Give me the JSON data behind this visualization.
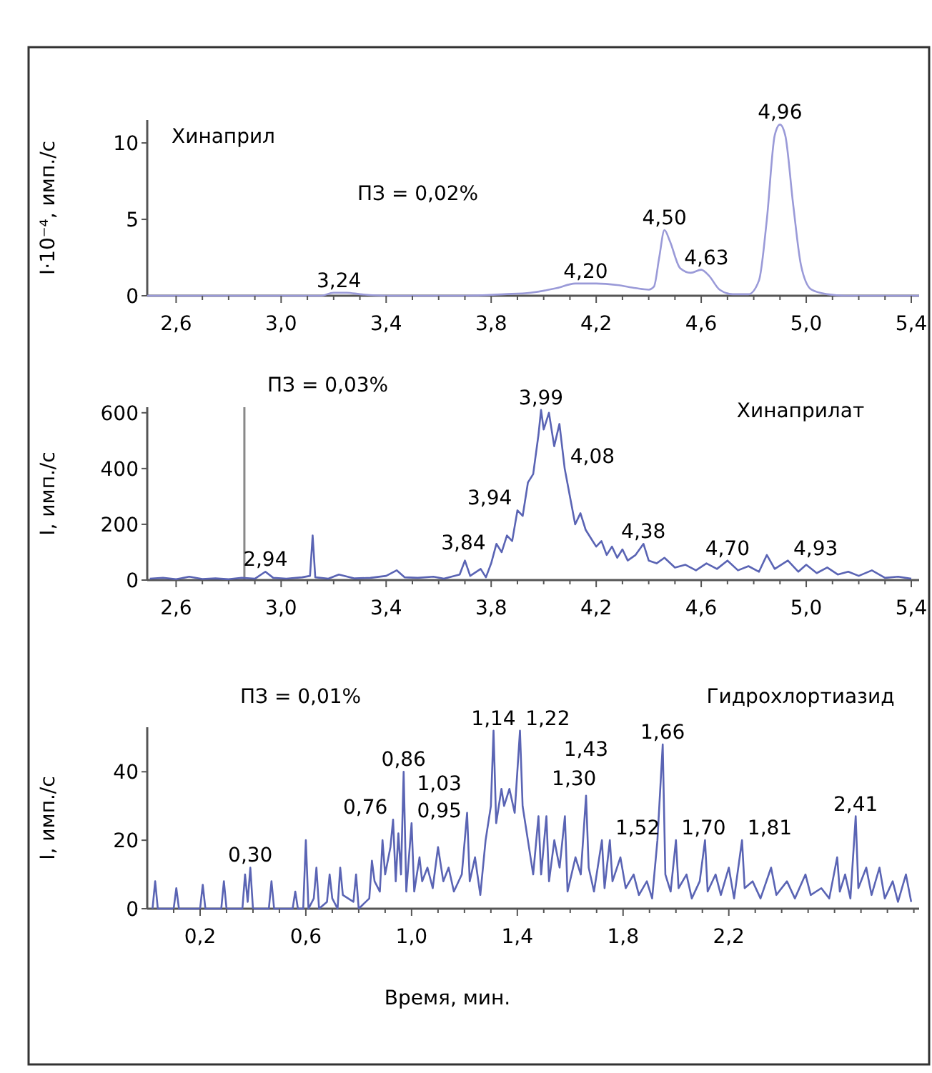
{
  "chart_data": [
    {
      "type": "line",
      "title": "Хинаприл",
      "ylabel": "I·10⁻⁴, имп./с",
      "xlim": [
        2.49,
        5.43
      ],
      "ylim": [
        0,
        11.5
      ],
      "yticks": [
        0,
        5,
        10
      ],
      "xticks": [
        {
          "value": 2.6,
          "label": "2,6"
        },
        {
          "value": 2.7,
          "label": null
        },
        {
          "value": 2.8,
          "label": null
        },
        {
          "value": 2.9,
          "label": null
        },
        {
          "value": 3.0,
          "label": "3,0"
        },
        {
          "value": 3.1,
          "label": null
        },
        {
          "value": 3.2,
          "label": null
        },
        {
          "value": 3.3,
          "label": null
        },
        {
          "value": 3.4,
          "label": "3,4"
        },
        {
          "value": 3.5,
          "label": null
        },
        {
          "value": 3.6,
          "label": null
        },
        {
          "value": 3.7,
          "label": null
        },
        {
          "value": 3.8,
          "label": "3,8"
        },
        {
          "value": 3.9,
          "label": null
        },
        {
          "value": 4.0,
          "label": null
        },
        {
          "value": 4.1,
          "label": null
        },
        {
          "value": 4.2,
          "label": "4,2"
        },
        {
          "value": 4.3,
          "label": null
        },
        {
          "value": 4.4,
          "label": null
        },
        {
          "value": 4.5,
          "label": null
        },
        {
          "value": 4.6,
          "label": "4,6"
        },
        {
          "value": 4.7,
          "label": null
        },
        {
          "value": 4.8,
          "label": null
        },
        {
          "value": 4.9,
          "label": null
        },
        {
          "value": 5.0,
          "label": "5,0"
        },
        {
          "value": 5.1,
          "label": null
        },
        {
          "value": 5.2,
          "label": null
        },
        {
          "value": 5.3,
          "label": null
        },
        {
          "value": 5.4,
          "label": "5,4"
        }
      ],
      "series": [
        {
          "color": "#9a9ad8",
          "x": [
            2.49,
            3.15,
            3.2,
            3.25,
            3.3,
            3.4,
            3.7,
            3.85,
            3.95,
            4.05,
            4.12,
            4.2,
            4.28,
            4.35,
            4.4,
            4.42,
            4.44,
            4.46,
            4.48,
            4.52,
            4.56,
            4.6,
            4.63,
            4.67,
            4.72,
            4.78,
            4.82,
            4.85,
            4.88,
            4.9,
            4.92,
            4.95,
            4.98,
            5.02,
            5.08,
            5.15,
            5.43
          ],
          "values": [
            0,
            0,
            0.2,
            0.2,
            0.1,
            0,
            0,
            0.1,
            0.2,
            0.5,
            0.8,
            0.8,
            0.7,
            0.5,
            0.4,
            0.6,
            2.5,
            4.3,
            3.6,
            1.8,
            1.5,
            1.7,
            1.3,
            0.4,
            0.1,
            0.1,
            1,
            5,
            10.5,
            11.2,
            10.5,
            6,
            2,
            0.4,
            0.1,
            0,
            0
          ]
        }
      ],
      "annotations": [
        "ПЗ = 0,02%",
        {
          "text": "3,24",
          "x": 3.22,
          "y": 0.2
        },
        {
          "text": "4,20",
          "x": 4.16,
          "y": 0.8
        },
        {
          "text": "4,50",
          "x": 4.46,
          "y": 4.3
        },
        {
          "text": "4,63",
          "x": 4.62,
          "y": 1.7
        },
        {
          "text": "4,96",
          "x": 4.9,
          "y": 11.2
        }
      ]
    },
    {
      "type": "line",
      "title": "Хинаприлат",
      "ylabel": "I, имп./с",
      "xlim": [
        2.49,
        5.43
      ],
      "ylim": [
        0,
        620
      ],
      "yticks": [
        0,
        200,
        400,
        600
      ],
      "xticks": [
        {
          "value": 2.6,
          "label": "2,6"
        },
        {
          "value": 2.7,
          "label": null
        },
        {
          "value": 2.8,
          "label": null
        },
        {
          "value": 2.9,
          "label": null
        },
        {
          "value": 3.0,
          "label": "3,0"
        },
        {
          "value": 3.1,
          "label": null
        },
        {
          "value": 3.2,
          "label": null
        },
        {
          "value": 3.3,
          "label": null
        },
        {
          "value": 3.4,
          "label": "3,4"
        },
        {
          "value": 3.5,
          "label": null
        },
        {
          "value": 3.6,
          "label": null
        },
        {
          "value": 3.7,
          "label": null
        },
        {
          "value": 3.8,
          "label": "3,8"
        },
        {
          "value": 3.9,
          "label": null
        },
        {
          "value": 4.0,
          "label": null
        },
        {
          "value": 4.1,
          "label": null
        },
        {
          "value": 4.2,
          "label": "4,2"
        },
        {
          "value": 4.3,
          "label": null
        },
        {
          "value": 4.4,
          "label": null
        },
        {
          "value": 4.5,
          "label": null
        },
        {
          "value": 4.6,
          "label": "4,6"
        },
        {
          "value": 4.7,
          "label": null
        },
        {
          "value": 4.8,
          "label": null
        },
        {
          "value": 4.9,
          "label": null
        },
        {
          "value": 5.0,
          "label": "5,0"
        },
        {
          "value": 5.1,
          "label": null
        },
        {
          "value": 5.2,
          "label": null
        },
        {
          "value": 5.3,
          "label": null
        },
        {
          "value": 5.4,
          "label": "5,4"
        }
      ],
      "ref_lines": [
        {
          "axis": "x",
          "value": 2.86,
          "color": "#888888"
        }
      ],
      "series": [
        {
          "color": "#5a64b4",
          "x": [
            2.5,
            2.55,
            2.6,
            2.65,
            2.7,
            2.75,
            2.8,
            2.85,
            2.9,
            2.94,
            2.97,
            3.02,
            3.08,
            3.11,
            3.12,
            3.13,
            3.18,
            3.22,
            3.28,
            3.34,
            3.4,
            3.44,
            3.47,
            3.52,
            3.58,
            3.62,
            3.68,
            3.7,
            3.72,
            3.76,
            3.78,
            3.8,
            3.82,
            3.84,
            3.86,
            3.88,
            3.9,
            3.92,
            3.94,
            3.96,
            3.98,
            3.99,
            4.0,
            4.02,
            4.04,
            4.06,
            4.08,
            4.1,
            4.12,
            4.14,
            4.16,
            4.18,
            4.2,
            4.22,
            4.24,
            4.26,
            4.28,
            4.3,
            4.32,
            4.35,
            4.38,
            4.4,
            4.43,
            4.46,
            4.5,
            4.54,
            4.58,
            4.62,
            4.66,
            4.7,
            4.74,
            4.78,
            4.82,
            4.85,
            4.88,
            4.93,
            4.97,
            5.0,
            5.04,
            5.08,
            5.12,
            5.16,
            5.2,
            5.25,
            5.3,
            5.35,
            5.4
          ],
          "values": [
            5,
            8,
            3,
            12,
            4,
            6,
            3,
            8,
            5,
            30,
            8,
            5,
            10,
            15,
            160,
            10,
            5,
            20,
            6,
            8,
            15,
            35,
            10,
            8,
            12,
            5,
            20,
            70,
            15,
            40,
            10,
            60,
            130,
            100,
            160,
            140,
            250,
            230,
            350,
            380,
            520,
            610,
            540,
            600,
            480,
            560,
            400,
            300,
            200,
            240,
            180,
            150,
            120,
            140,
            90,
            120,
            80,
            110,
            70,
            90,
            130,
            70,
            60,
            80,
            45,
            55,
            35,
            60,
            40,
            70,
            35,
            50,
            30,
            90,
            40,
            70,
            30,
            55,
            25,
            45,
            20,
            30,
            15,
            35,
            8,
            12,
            5
          ]
        }
      ],
      "annotations": [
        "ПЗ = 0,03%",
        {
          "text": "2,94",
          "x": 2.94,
          "y": 30
        },
        {
          "text": "3,84",
          "x": 3.8,
          "y": 60
        },
        {
          "text": "3,94",
          "x": 3.9,
          "y": 250
        },
        {
          "text": "3,99",
          "x": 3.99,
          "y": 610
        },
        {
          "text": "4,08",
          "x": 4.08,
          "y": 400
        },
        {
          "text": "4,38",
          "x": 4.38,
          "y": 130
        },
        {
          "text": "4,70",
          "x": 4.7,
          "y": 70
        },
        {
          "text": "4,93",
          "x": 4.93,
          "y": 70
        }
      ]
    },
    {
      "type": "line",
      "title": "Гидрохлортиазид",
      "ylabel": "I, имп./с",
      "xlabel": "Время, мин.",
      "xlim": [
        0,
        2.92
      ],
      "ylim": [
        0,
        53
      ],
      "yticks": [
        0,
        20,
        40
      ],
      "xticks": [
        {
          "value": 0.1,
          "label": null
        },
        {
          "value": 0.2,
          "label": "0,2"
        },
        {
          "value": 0.3,
          "label": null
        },
        {
          "value": 0.4,
          "label": null
        },
        {
          "value": 0.5,
          "label": null
        },
        {
          "value": 0.6,
          "label": "0,6"
        },
        {
          "value": 0.7,
          "label": null
        },
        {
          "value": 0.8,
          "label": null
        },
        {
          "value": 0.9,
          "label": null
        },
        {
          "value": 1.0,
          "label": "1,0"
        },
        {
          "value": 1.1,
          "label": null
        },
        {
          "value": 1.2,
          "label": null
        },
        {
          "value": 1.3,
          "label": null
        },
        {
          "value": 1.4,
          "label": "1,4"
        },
        {
          "value": 1.5,
          "label": null
        },
        {
          "value": 1.6,
          "label": null
        },
        {
          "value": 1.7,
          "label": null
        },
        {
          "value": 1.8,
          "label": "1,8"
        },
        {
          "value": 1.9,
          "label": null
        },
        {
          "value": 2.0,
          "label": null
        },
        {
          "value": 2.1,
          "label": null
        },
        {
          "value": 2.2,
          "label": "2,2"
        },
        {
          "value": 2.3,
          "label": null
        },
        {
          "value": 2.4,
          "label": null
        },
        {
          "value": 2.5,
          "label": null
        },
        {
          "value": 2.6,
          "label": null
        },
        {
          "value": 2.7,
          "label": null
        },
        {
          "value": 2.8,
          "label": null
        },
        {
          "value": 2.9,
          "label": null
        }
      ],
      "series": [
        {
          "color": "#5a64b4",
          "x": [
            0.02,
            0.03,
            0.04,
            0.1,
            0.11,
            0.12,
            0.2,
            0.21,
            0.22,
            0.28,
            0.29,
            0.3,
            0.36,
            0.37,
            0.38,
            0.39,
            0.4,
            0.46,
            0.47,
            0.48,
            0.55,
            0.56,
            0.57,
            0.59,
            0.6,
            0.61,
            0.63,
            0.64,
            0.65,
            0.68,
            0.69,
            0.7,
            0.72,
            0.73,
            0.74,
            0.78,
            0.79,
            0.8,
            0.84,
            0.85,
            0.86,
            0.88,
            0.89,
            0.9,
            0.92,
            0.93,
            0.94,
            0.95,
            0.96,
            0.97,
            0.98,
            1.0,
            1.01,
            1.03,
            1.04,
            1.06,
            1.08,
            1.1,
            1.12,
            1.14,
            1.16,
            1.19,
            1.21,
            1.22,
            1.24,
            1.26,
            1.28,
            1.3,
            1.31,
            1.32,
            1.34,
            1.35,
            1.37,
            1.39,
            1.41,
            1.42,
            1.44,
            1.46,
            1.48,
            1.49,
            1.51,
            1.52,
            1.54,
            1.56,
            1.58,
            1.59,
            1.62,
            1.64,
            1.66,
            1.67,
            1.69,
            1.72,
            1.73,
            1.75,
            1.76,
            1.79,
            1.81,
            1.84,
            1.86,
            1.89,
            1.91,
            1.93,
            1.95,
            1.96,
            1.98,
            2.0,
            2.01,
            2.04,
            2.06,
            2.09,
            2.11,
            2.12,
            2.15,
            2.17,
            2.2,
            2.22,
            2.25,
            2.26,
            2.29,
            2.32,
            2.36,
            2.38,
            2.42,
            2.45,
            2.49,
            2.51,
            2.55,
            2.58,
            2.61,
            2.62,
            2.64,
            2.66,
            2.68,
            2.69,
            2.72,
            2.74,
            2.77,
            2.79,
            2.82,
            2.84,
            2.87,
            2.89
          ],
          "values": [
            0,
            8,
            0,
            0,
            6,
            0,
            0,
            7,
            0,
            0,
            8,
            0,
            0,
            10,
            2,
            12,
            0,
            0,
            8,
            0,
            0,
            5,
            0,
            0,
            20,
            0,
            3,
            12,
            0,
            2,
            10,
            3,
            0,
            12,
            4,
            2,
            10,
            0,
            3,
            14,
            8,
            5,
            20,
            10,
            18,
            26,
            8,
            22,
            10,
            40,
            5,
            25,
            5,
            15,
            8,
            12,
            6,
            18,
            8,
            12,
            5,
            10,
            28,
            8,
            15,
            4,
            20,
            30,
            52,
            25,
            35,
            30,
            35,
            28,
            52,
            30,
            20,
            10,
            27,
            10,
            27,
            8,
            20,
            12,
            27,
            5,
            15,
            10,
            33,
            12,
            5,
            20,
            6,
            20,
            8,
            15,
            6,
            10,
            4,
            8,
            3,
            20,
            48,
            10,
            5,
            20,
            6,
            10,
            3,
            8,
            20,
            5,
            10,
            4,
            12,
            3,
            20,
            6,
            8,
            3,
            12,
            4,
            8,
            3,
            10,
            4,
            6,
            3,
            15,
            5,
            10,
            3,
            27,
            6,
            12,
            4,
            12,
            3,
            8,
            2,
            10,
            2
          ]
        }
      ],
      "annotations": [
        "ПЗ = 0,01%",
        {
          "text": "0,30",
          "x": 0.39,
          "y": 12
        },
        {
          "text": "0,76",
          "x": 0.93,
          "y": 26
        },
        {
          "text": "0,86",
          "x": 0.97,
          "y": 40
        },
        {
          "text": "0,95",
          "x": 1.0,
          "y": 25
        },
        {
          "text": "1,03",
          "x": 1.21,
          "y": 28
        },
        {
          "text": "1,14",
          "x": 1.31,
          "y": 52
        },
        {
          "text": "1,22",
          "x": 1.41,
          "y": 52
        },
        {
          "text": "1,30",
          "x": 1.51,
          "y": 27
        },
        {
          "text": "1,43",
          "x": 1.66,
          "y": 33
        },
        {
          "text": "1,52",
          "x": 1.75,
          "y": 20
        },
        {
          "text": "1,66",
          "x": 1.95,
          "y": 48
        },
        {
          "text": "1,70",
          "x": 2.0,
          "y": 20
        },
        {
          "text": "1,81",
          "x": 2.25,
          "y": 20
        },
        {
          "text": "2,41",
          "x": 2.68,
          "y": 27
        }
      ]
    }
  ]
}
